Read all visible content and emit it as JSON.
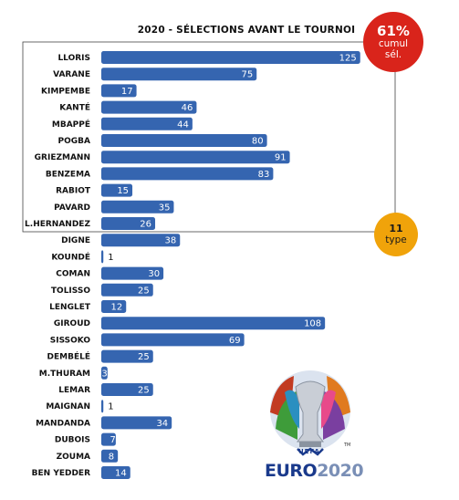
{
  "chart_data": {
    "type": "bar",
    "orientation": "horizontal",
    "title": "2020 - SÉLECTIONS AVANT LE TOURNOI",
    "categories": [
      "LLORIS",
      "VARANE",
      "KIMPEMBE",
      "KANTÉ",
      "MBAPPÉ",
      "POGBA",
      "GRIEZMANN",
      "BENZEMA",
      "RABIOT",
      "PAVARD",
      "L.HERNANDEZ",
      "DIGNE",
      "KOUNDÉ",
      "COMAN",
      "TOLISSO",
      "LENGLET",
      "GIROUD",
      "SISSOKO",
      "DEMBÉLÉ",
      "M.THURAM",
      "LEMAR",
      "MAIGNAN",
      "MANDANDA",
      "DUBOIS",
      "ZOUMA",
      "BEN YEDDER"
    ],
    "values": [
      125,
      75,
      17,
      46,
      44,
      80,
      91,
      83,
      15,
      35,
      26,
      38,
      1,
      30,
      25,
      12,
      108,
      69,
      25,
      3,
      25,
      1,
      34,
      7,
      8,
      14
    ],
    "xlim": [
      0,
      130
    ],
    "bar_color": "#3565b0",
    "highlight_group": "top-11-box"
  },
  "callouts": {
    "cumul": {
      "value": "61%",
      "line1": "cumul",
      "line2": "sél.",
      "color": "#d9241b"
    },
    "type": {
      "value": "11",
      "label": "type",
      "color": "#f0a30a"
    }
  },
  "logo": {
    "name": "euro-2020-logo",
    "uefa": "UEFA",
    "word_main": "EURO",
    "word_year": "2020",
    "tm": "TM"
  }
}
